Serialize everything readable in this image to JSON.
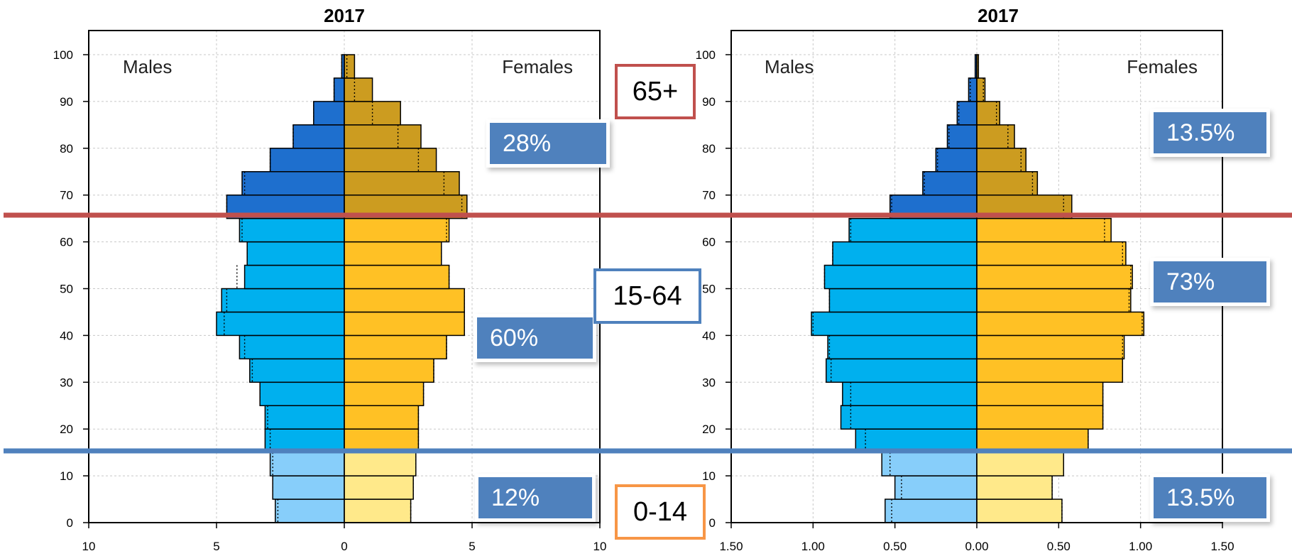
{
  "chart_data": [
    {
      "type": "bar",
      "subtype": "population-pyramid",
      "title": "2017",
      "left_label": "Males",
      "right_label": "Females",
      "x_ticks": [
        "10",
        "5",
        "0",
        "5",
        "10"
      ],
      "x_tick_values": [
        -10,
        -5,
        0,
        5,
        10
      ],
      "xlim": [
        -10,
        10
      ],
      "y_ticks": [
        "0",
        "10",
        "20",
        "30",
        "40",
        "50",
        "60",
        "70",
        "80",
        "90",
        "100"
      ],
      "ylim": [
        0,
        100
      ],
      "grid": true,
      "age_groups": [
        0,
        5,
        10,
        15,
        20,
        25,
        30,
        35,
        40,
        45,
        50,
        55,
        60,
        65,
        70,
        75,
        80,
        85,
        90,
        95,
        100
      ],
      "series": [
        {
          "values": [
            2.7,
            2.8,
            2.9,
            3.1,
            3.1,
            3.3,
            3.7,
            4.1,
            5.0,
            4.8,
            3.9,
            3.8,
            4.1,
            4.6,
            4.0,
            2.9,
            2.0,
            1.2,
            0.4,
            0.1,
            0.0
          ]
        },
        {
          "values": [
            2.6,
            2.7,
            2.8,
            2.9,
            2.9,
            3.1,
            3.5,
            4.0,
            4.7,
            4.7,
            4.1,
            3.8,
            4.1,
            4.8,
            4.5,
            3.6,
            3.0,
            2.2,
            1.1,
            0.4,
            0.0
          ]
        }
      ],
      "reference_outline": {
        "males": [
          2.6,
          2.8,
          2.8,
          2.9,
          3.0,
          3.3,
          3.6,
          3.9,
          4.7,
          4.6,
          4.2,
          3.8,
          4.0,
          4.6,
          3.9,
          2.9,
          2.0,
          1.2,
          0.4,
          0.1,
          0.0
        ],
        "females": [
          2.6,
          2.7,
          2.8,
          2.9,
          2.9,
          3.1,
          3.5,
          4.0,
          4.7,
          4.7,
          4.1,
          3.8,
          4.0,
          4.6,
          3.9,
          2.9,
          2.1,
          1.1,
          0.4,
          0.1,
          0.0
        ]
      },
      "colors": {
        "male": {
          "young": "#87cefa",
          "working": "#00b0ee",
          "old": "#1e6fce"
        },
        "female": {
          "young": "#ffe98a",
          "working": "#ffc125",
          "old": "#cc9c20"
        }
      },
      "shares": {
        "old": "28%",
        "working": "60%",
        "young": "12%"
      }
    },
    {
      "type": "bar",
      "subtype": "population-pyramid",
      "title": "2017",
      "left_label": "Males",
      "right_label": "Females",
      "x_ticks": [
        "1.50",
        "1.00",
        "0.50",
        "0.00",
        "0.50",
        "1.00",
        "1.50"
      ],
      "x_tick_values": [
        -1.5,
        -1.0,
        -0.5,
        0,
        0.5,
        1.0,
        1.5
      ],
      "xlim": [
        -1.5,
        1.5
      ],
      "y_ticks": [
        "0",
        "10",
        "20",
        "30",
        "40",
        "50",
        "60",
        "70",
        "80",
        "90",
        "100"
      ],
      "ylim": [
        0,
        100
      ],
      "grid": true,
      "age_groups": [
        0,
        5,
        10,
        15,
        20,
        25,
        30,
        35,
        40,
        45,
        50,
        55,
        60,
        65,
        70,
        75,
        80,
        85,
        90,
        95,
        100
      ],
      "series": [
        {
          "values": [
            0.56,
            0.5,
            0.58,
            0.74,
            0.83,
            0.82,
            0.92,
            0.91,
            1.01,
            0.9,
            0.93,
            0.88,
            0.78,
            0.53,
            0.33,
            0.25,
            0.18,
            0.12,
            0.05,
            0.01,
            0.0
          ]
        },
        {
          "values": [
            0.52,
            0.46,
            0.53,
            0.68,
            0.77,
            0.77,
            0.89,
            0.9,
            1.02,
            0.94,
            0.95,
            0.91,
            0.82,
            0.58,
            0.37,
            0.3,
            0.23,
            0.14,
            0.05,
            0.01,
            0.0
          ]
        }
      ],
      "reference_outline": {
        "males": [
          0.52,
          0.46,
          0.53,
          0.68,
          0.77,
          0.77,
          0.89,
          0.9,
          1.0,
          0.9,
          0.93,
          0.88,
          0.77,
          0.52,
          0.32,
          0.24,
          0.17,
          0.11,
          0.04,
          0.01,
          0.0
        ],
        "females": [
          0.52,
          0.46,
          0.53,
          0.68,
          0.77,
          0.77,
          0.89,
          0.89,
          1.01,
          0.93,
          0.94,
          0.89,
          0.78,
          0.53,
          0.34,
          0.27,
          0.19,
          0.12,
          0.04,
          0.01,
          0.0
        ]
      },
      "colors": {
        "male": {
          "young": "#87cefa",
          "working": "#00b0ee",
          "old": "#1e6fce"
        },
        "female": {
          "young": "#ffe98a",
          "working": "#ffc125",
          "old": "#cc9c20"
        }
      },
      "shares": {
        "old": "13.5%",
        "working": "73%",
        "young": "13.5%"
      }
    }
  ],
  "age_group_labels": {
    "old": "65+",
    "working": "15-64",
    "young": "0-14"
  },
  "divider_colors": {
    "old": "#c0504d",
    "young": "#4f81bd"
  },
  "label_box_colors": {
    "old": "#c0504d",
    "working": "#4f81bd",
    "young": "#f79646"
  }
}
